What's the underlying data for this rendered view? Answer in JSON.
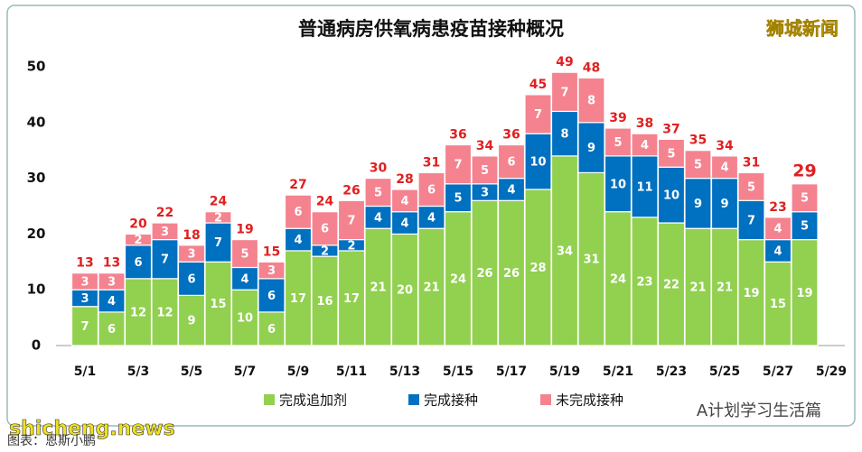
{
  "chart_data": {
    "type": "bar",
    "stacked": true,
    "title": "普通病房供氧病患疫苗接种概况",
    "categories": [
      "5/1",
      null,
      "5/3",
      null,
      "5/5",
      null,
      "5/7",
      null,
      "5/9",
      null,
      "5/11",
      null,
      "5/13",
      null,
      "5/15",
      null,
      "5/17",
      null,
      "5/19",
      null,
      "5/21",
      null,
      "5/23",
      null,
      "5/25",
      null,
      "5/27",
      null,
      "5/29"
    ],
    "series": [
      {
        "name": "完成追加剂",
        "color": "#92d050",
        "values": [
          7,
          6,
          12,
          12,
          9,
          15,
          10,
          6,
          17,
          16,
          17,
          21,
          20,
          21,
          24,
          26,
          26,
          28,
          34,
          31,
          24,
          23,
          22,
          21,
          21,
          19,
          15,
          19,
          null
        ]
      },
      {
        "name": "完成接种",
        "color": "#0070c0",
        "values": [
          3,
          4,
          6,
          7,
          6,
          7,
          4,
          6,
          4,
          2,
          2,
          4,
          4,
          4,
          5,
          3,
          4,
          10,
          8,
          9,
          10,
          11,
          10,
          9,
          9,
          7,
          4,
          5,
          null
        ]
      },
      {
        "name": "未完成接种",
        "color": "#f4838f",
        "values": [
          3,
          3,
          2,
          3,
          3,
          2,
          5,
          3,
          6,
          6,
          7,
          5,
          4,
          6,
          7,
          5,
          6,
          7,
          7,
          8,
          5,
          4,
          5,
          5,
          4,
          5,
          4,
          5,
          null
        ]
      }
    ],
    "totals": [
      13,
      13,
      20,
      22,
      18,
      24,
      19,
      15,
      27,
      24,
      26,
      30,
      28,
      31,
      36,
      34,
      36,
      45,
      49,
      48,
      39,
      38,
      37,
      35,
      34,
      31,
      23,
      29,
      null
    ],
    "total_color": "#e02020",
    "ylim": [
      0,
      50
    ],
    "yticks": [
      0,
      10,
      20,
      30,
      40,
      50
    ],
    "grid": false,
    "legend": "bottom",
    "watermarks": [
      "狮城新闻",
      "shicheng.news",
      "A计划学习生活篇",
      "图表：恩斯小鹏"
    ]
  }
}
